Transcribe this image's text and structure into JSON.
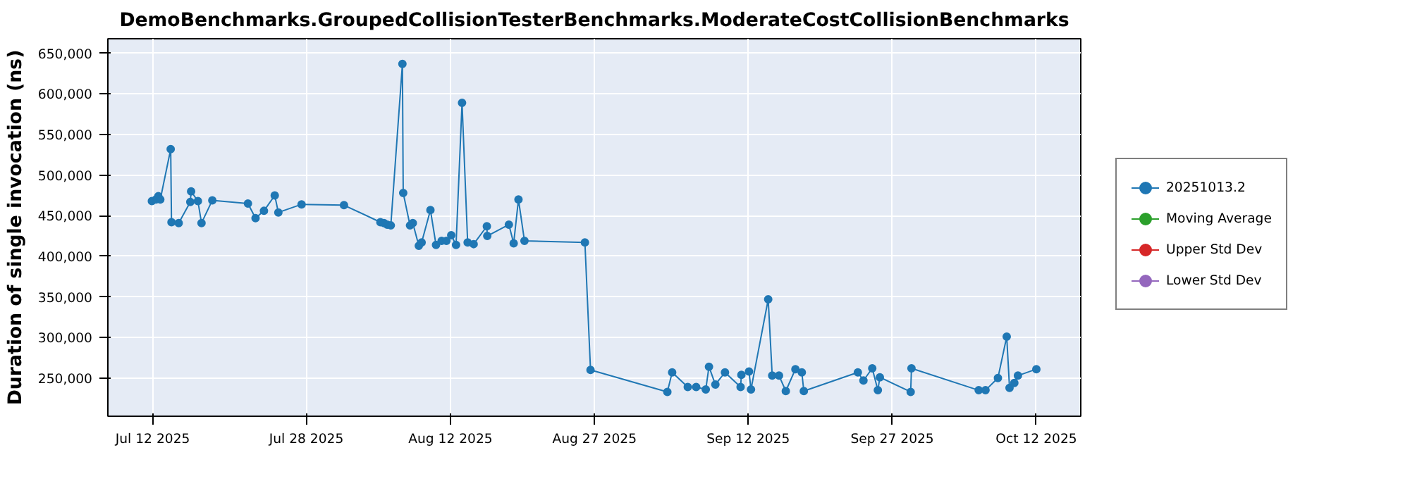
{
  "chart_data": {
    "type": "line",
    "title": "DemoBenchmarks.GroupedCollisionTesterBenchmarks.ModerateCostCollisionBenchmarks",
    "ylabel": "Duration of single invocation (ns)",
    "x": [
      "2025-07-11T22:00",
      "2025-07-12T08:00",
      "2025-07-12T14:00",
      "2025-07-12T19:00",
      "2025-07-13T21:00",
      "2025-07-13T23:00",
      "2025-07-14T17:00",
      "2025-07-15T22:00",
      "2025-07-16T00:00",
      "2025-07-16T17:00",
      "2025-07-17T02:00",
      "2025-07-18T05:00",
      "2025-07-21T22:00",
      "2025-07-22T17:00",
      "2025-07-23T14:00",
      "2025-07-24T17:00",
      "2025-07-25T02:00",
      "2025-07-27T12:00",
      "2025-07-31T22:00",
      "2025-08-04T17:00",
      "2025-08-05T02:00",
      "2025-08-05T10:00",
      "2025-08-05T19:00",
      "2025-08-07T00:00",
      "2025-08-07T02:00",
      "2025-08-07T19:00",
      "2025-08-08T02:00",
      "2025-08-08T17:00",
      "2025-08-09T00:00",
      "2025-08-09T22:00",
      "2025-08-10T12:00",
      "2025-08-11T02:00",
      "2025-08-11T14:00",
      "2025-08-12T02:00",
      "2025-08-12T14:00",
      "2025-08-13T05:00",
      "2025-08-13T19:00",
      "2025-08-14T10:00",
      "2025-08-15T19:00",
      "2025-08-15T20:00",
      "2025-08-18T02:00",
      "2025-08-18T14:00",
      "2025-08-19T02:00",
      "2025-08-19T17:00",
      "2025-08-26T00:00",
      "2025-08-26T14:00",
      "2025-09-03T14:00",
      "2025-09-04T02:00",
      "2025-09-05T17:00",
      "2025-09-06T14:00",
      "2025-09-07T14:00",
      "2025-09-07T22:00",
      "2025-09-08T14:00",
      "2025-09-09T14:00",
      "2025-09-11T05:00",
      "2025-09-11T07:00",
      "2025-09-12T02:00",
      "2025-09-12T07:00",
      "2025-09-14T02:00",
      "2025-09-14T12:00",
      "2025-09-15T05:00",
      "2025-09-15T22:00",
      "2025-09-16T22:00",
      "2025-09-17T14:00",
      "2025-09-17T19:00",
      "2025-09-23T10:00",
      "2025-09-24T00:00",
      "2025-09-24T22:00",
      "2025-09-25T12:00",
      "2025-09-25T17:00",
      "2025-09-28T22:00",
      "2025-09-29T00:00",
      "2025-10-06T00:00",
      "2025-10-06T17:00",
      "2025-10-08T00:00",
      "2025-10-08T22:00",
      "2025-10-09T05:00",
      "2025-10-09T17:00",
      "2025-10-10T02:00",
      "2025-10-12T00:00"
    ],
    "series": [
      {
        "name": "20251013.2",
        "color": "#1f77b4",
        "values": [
          468000,
          470000,
          474000,
          470000,
          532000,
          442000,
          441000,
          467000,
          480000,
          468000,
          441000,
          469000,
          465000,
          447000,
          456000,
          475000,
          454000,
          464000,
          463000,
          442000,
          441000,
          439000,
          438000,
          637000,
          478000,
          438000,
          441000,
          413000,
          417000,
          457000,
          414000,
          419000,
          419000,
          426000,
          414000,
          589000,
          417000,
          415000,
          437000,
          425000,
          439000,
          416000,
          470000,
          419000,
          417000,
          260000,
          233000,
          257000,
          239000,
          239000,
          236000,
          264000,
          242000,
          257000,
          239000,
          254000,
          258000,
          236000,
          347000,
          253000,
          253000,
          234000,
          261000,
          257000,
          234000,
          257000,
          247000,
          262000,
          235000,
          251000,
          233000,
          262000,
          235000,
          235000,
          250000,
          301000,
          238000,
          244000,
          253000,
          261000
        ]
      },
      {
        "name": "Moving Average",
        "color": "#2ca02c",
        "values": [
          null,
          null,
          null,
          null,
          null,
          null,
          null,
          null,
          null,
          null,
          null,
          null,
          null,
          null,
          null,
          null,
          null,
          null,
          null,
          null,
          null,
          null,
          null,
          null,
          null,
          null,
          null,
          null,
          null,
          null,
          null,
          null,
          null,
          null,
          null,
          null,
          null,
          null,
          null,
          null,
          null,
          null,
          null,
          null,
          null,
          null,
          null,
          null,
          null,
          null,
          null,
          null,
          null,
          null,
          null,
          null,
          null,
          null,
          null,
          null,
          null,
          null,
          null,
          null,
          null,
          null,
          null,
          null,
          null,
          null,
          null,
          null,
          null,
          null,
          null,
          null,
          null,
          null,
          null,
          null
        ]
      },
      {
        "name": "Upper Std Dev",
        "color": "#d62728",
        "values": [
          null,
          null,
          null,
          null,
          null,
          null,
          null,
          null,
          null,
          null,
          null,
          null,
          null,
          null,
          null,
          null,
          null,
          null,
          null,
          null,
          null,
          null,
          null,
          null,
          null,
          null,
          null,
          null,
          null,
          null,
          null,
          null,
          null,
          null,
          null,
          null,
          null,
          null,
          null,
          null,
          null,
          null,
          null,
          null,
          null,
          null,
          null,
          null,
          null,
          null,
          null,
          null,
          null,
          null,
          null,
          null,
          null,
          null,
          null,
          null,
          null,
          null,
          null,
          null,
          null,
          null,
          null,
          null,
          null,
          null,
          null,
          null,
          null,
          null,
          null,
          null,
          null,
          null,
          null,
          null
        ]
      },
      {
        "name": "Lower Std Dev",
        "color": "#9467bd",
        "values": [
          null,
          null,
          null,
          null,
          null,
          null,
          null,
          null,
          null,
          null,
          null,
          null,
          null,
          null,
          null,
          null,
          null,
          null,
          null,
          null,
          null,
          null,
          null,
          null,
          null,
          null,
          null,
          null,
          null,
          null,
          null,
          null,
          null,
          null,
          null,
          null,
          null,
          null,
          null,
          null,
          null,
          null,
          null,
          null,
          null,
          null,
          null,
          null,
          null,
          null,
          null,
          null,
          null,
          null,
          null,
          null,
          null,
          null,
          null,
          null,
          null,
          null,
          null,
          null,
          null,
          null,
          null,
          null,
          null,
          null,
          null,
          null,
          null,
          null,
          null,
          null,
          null,
          null,
          null,
          null
        ]
      }
    ],
    "xlim": [
      "2025-07-07T08:00",
      "2025-10-16T15:00"
    ],
    "xticks": [
      {
        "value": "2025-07-12",
        "label": "Jul 12 2025"
      },
      {
        "value": "2025-07-28",
        "label": "Jul 28 2025"
      },
      {
        "value": "2025-08-12",
        "label": "Aug 12 2025"
      },
      {
        "value": "2025-08-27",
        "label": "Aug 27 2025"
      },
      {
        "value": "2025-09-12",
        "label": "Sep 12 2025"
      },
      {
        "value": "2025-09-27",
        "label": "Sep 27 2025"
      },
      {
        "value": "2025-10-12",
        "label": "Oct 12 2025"
      }
    ],
    "ylim": [
      203000,
      668000
    ],
    "yticks": [
      {
        "value": 250000,
        "label": "250,000"
      },
      {
        "value": 300000,
        "label": "300,000"
      },
      {
        "value": 350000,
        "label": "350,000"
      },
      {
        "value": 400000,
        "label": "400,000"
      },
      {
        "value": 450000,
        "label": "450,000"
      },
      {
        "value": 500000,
        "label": "500,000"
      },
      {
        "value": 550000,
        "label": "550,000"
      },
      {
        "value": 600000,
        "label": "600,000"
      },
      {
        "value": 650000,
        "label": "650,000"
      }
    ],
    "grid": true,
    "legend": "right",
    "marker": "circle",
    "line_style": "solid"
  }
}
